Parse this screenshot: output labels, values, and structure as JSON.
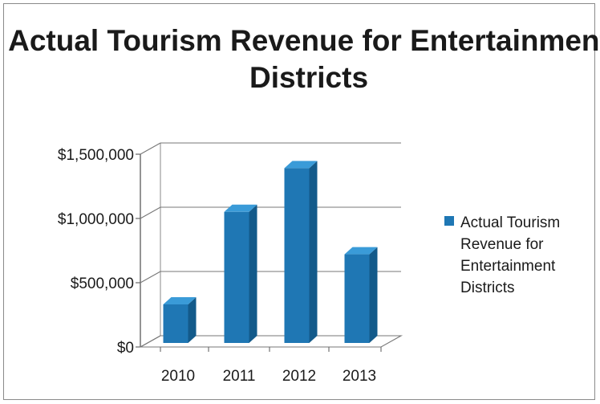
{
  "chart_data": {
    "type": "bar",
    "title": "Actual Tourism Revenue for Entertainment Districts",
    "categories": [
      "2010",
      "2011",
      "2012",
      "2013"
    ],
    "series": [
      {
        "name": "Actual Tourism Revenue for Entertainment Districts",
        "values": [
          300000,
          1020000,
          1360000,
          690000
        ]
      }
    ],
    "yticks": [
      "$0",
      "$500,000",
      "$1,000,000",
      "$1,500,000"
    ],
    "ylim": [
      0,
      1500000
    ],
    "xlabel": "",
    "ylabel": "",
    "grid": true,
    "legend_position": "right",
    "bar_color": "#1f77b4"
  }
}
